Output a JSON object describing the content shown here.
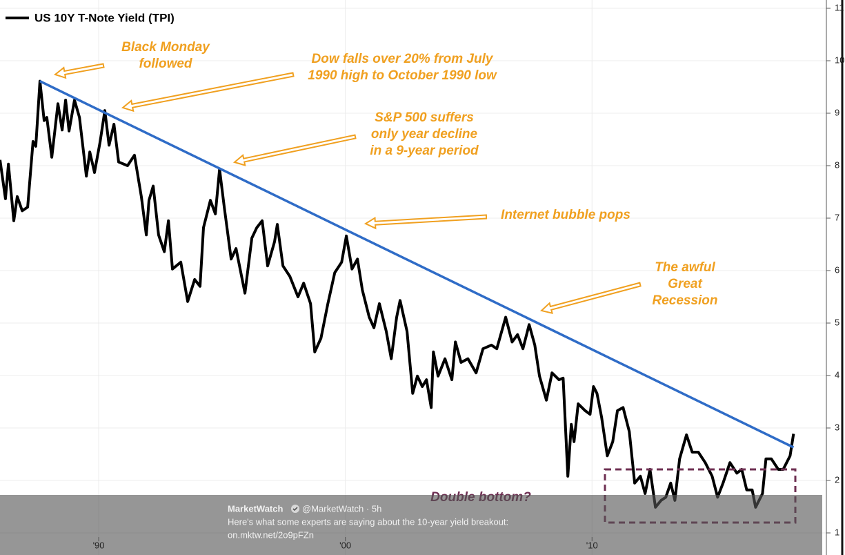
{
  "chart_data": {
    "type": "line",
    "xlim": [
      1986,
      2019.5
    ],
    "ylim": [
      1,
      11
    ],
    "yticks": [
      1,
      2,
      3,
      4,
      5,
      6,
      7,
      8,
      9,
      10,
      11
    ],
    "xticks": [
      {
        "value": 1990,
        "label": "'90"
      },
      {
        "value": 2000,
        "label": "'00"
      },
      {
        "value": 2010,
        "label": "'10"
      }
    ],
    "grid": true,
    "legend": "top-left",
    "series": [
      {
        "name": "US 10Y T-Note Yield (TPI)",
        "color": "#000000",
        "x": [
          1986.0,
          1986.22,
          1986.34,
          1986.56,
          1986.7,
          1986.9,
          1987.12,
          1987.34,
          1987.45,
          1987.62,
          1987.79,
          1987.9,
          1988.1,
          1988.35,
          1988.52,
          1988.66,
          1988.8,
          1989.02,
          1989.22,
          1989.5,
          1989.64,
          1989.83,
          1990.06,
          1990.25,
          1990.42,
          1990.62,
          1990.81,
          1991.17,
          1991.45,
          1991.73,
          1991.93,
          1992.04,
          1992.21,
          1992.43,
          1992.66,
          1992.83,
          1992.99,
          1993.33,
          1993.61,
          1993.89,
          1994.11,
          1994.25,
          1994.53,
          1994.73,
          1994.9,
          1995.09,
          1995.37,
          1995.57,
          1995.93,
          1996.21,
          1996.41,
          1996.63,
          1996.85,
          1997.13,
          1997.24,
          1997.47,
          1997.75,
          1998.08,
          1998.31,
          1998.59,
          1998.76,
          1999.01,
          1999.29,
          1999.57,
          1999.85,
          2000.04,
          2000.27,
          2000.49,
          2000.69,
          2000.97,
          2001.16,
          2001.38,
          2001.66,
          2001.86,
          2002.08,
          2002.22,
          2002.5,
          2002.73,
          2002.92,
          2003.12,
          2003.29,
          2003.48,
          2003.57,
          2003.76,
          2004.04,
          2004.32,
          2004.46,
          2004.69,
          2004.97,
          2005.3,
          2005.58,
          2005.92,
          2006.14,
          2006.5,
          2006.76,
          2006.98,
          2007.2,
          2007.45,
          2007.68,
          2007.87,
          2008.15,
          2008.38,
          2008.66,
          2008.83,
          2009.02,
          2009.16,
          2009.27,
          2009.44,
          2009.72,
          2009.92,
          2010.06,
          2010.2,
          2010.39,
          2010.62,
          2010.84,
          2011.03,
          2011.26,
          2011.51,
          2011.73,
          2011.96,
          2012.15,
          2012.35,
          2012.57,
          2012.8,
          2012.99,
          2013.19,
          2013.36,
          2013.55,
          2013.83,
          2014.06,
          2014.31,
          2014.59,
          2014.87,
          2015.09,
          2015.31,
          2015.59,
          2015.87,
          2016.07,
          2016.27,
          2016.49,
          2016.63,
          2016.91,
          2017.05,
          2017.27,
          2017.55,
          2017.75,
          2017.89,
          2018.03,
          2018.17
        ],
        "values": [
          8.11,
          7.37,
          8.03,
          6.95,
          7.41,
          7.14,
          7.21,
          8.46,
          8.37,
          9.61,
          8.86,
          8.92,
          8.16,
          9.18,
          8.68,
          9.25,
          8.66,
          9.25,
          8.92,
          7.8,
          8.26,
          7.87,
          8.46,
          9.05,
          8.39,
          8.79,
          8.07,
          8.0,
          8.2,
          7.41,
          6.68,
          7.34,
          7.61,
          6.68,
          6.36,
          6.95,
          6.03,
          6.16,
          5.41,
          5.83,
          5.7,
          6.82,
          7.34,
          7.08,
          7.93,
          7.21,
          6.22,
          6.42,
          5.57,
          6.62,
          6.82,
          6.95,
          6.09,
          6.55,
          6.88,
          6.09,
          5.89,
          5.5,
          5.76,
          5.37,
          4.45,
          4.71,
          5.37,
          5.96,
          6.16,
          6.66,
          6.03,
          6.22,
          5.63,
          5.11,
          4.91,
          5.37,
          4.84,
          4.32,
          5.11,
          5.43,
          4.84,
          3.66,
          3.99,
          3.79,
          3.92,
          3.39,
          4.45,
          3.99,
          4.32,
          3.92,
          4.64,
          4.25,
          4.32,
          4.05,
          4.51,
          4.58,
          4.51,
          5.11,
          4.64,
          4.78,
          4.51,
          4.97,
          4.58,
          3.99,
          3.53,
          4.05,
          3.92,
          3.95,
          2.08,
          3.07,
          2.74,
          3.46,
          3.33,
          3.26,
          3.79,
          3.66,
          3.2,
          2.47,
          2.74,
          3.33,
          3.39,
          2.93,
          1.95,
          2.08,
          1.75,
          2.21,
          1.49,
          1.62,
          1.68,
          1.95,
          1.62,
          2.41,
          2.87,
          2.54,
          2.54,
          2.34,
          2.08,
          1.68,
          1.95,
          2.34,
          2.14,
          2.21,
          1.82,
          1.82,
          1.49,
          1.75,
          2.41,
          2.41,
          2.21,
          2.21,
          2.34,
          2.47,
          2.89
        ]
      }
    ],
    "trendline": {
      "color": "#2f6cc7",
      "x": [
        1987.62,
        2018.17
      ],
      "values": [
        9.61,
        2.63
      ]
    },
    "annotations": [
      {
        "lines": [
          "Black Monday",
          "followed"
        ],
        "color": "#f0a020"
      },
      {
        "lines": [
          "Dow falls over 20% from July",
          "1990 high to October 1990 low"
        ],
        "color": "#f0a020"
      },
      {
        "lines": [
          "S&P 500 suffers",
          "only year decline",
          "in a 9-year period"
        ],
        "color": "#f0a020"
      },
      {
        "lines": [
          "Internet bubble pops"
        ],
        "color": "#f0a020"
      },
      {
        "lines": [
          "The awful",
          "Great",
          "Recession"
        ],
        "color": "#f0a020"
      },
      {
        "lines": [
          "Double bottom?"
        ],
        "color": "#6e2f52"
      }
    ]
  },
  "tweet": {
    "name": "MarketWatch",
    "meta": "@MarketWatch · 5h",
    "text": "Here's what some experts are saying about the 10-year yield breakout:",
    "link": "on.mktw.net/2o9pFZn"
  }
}
